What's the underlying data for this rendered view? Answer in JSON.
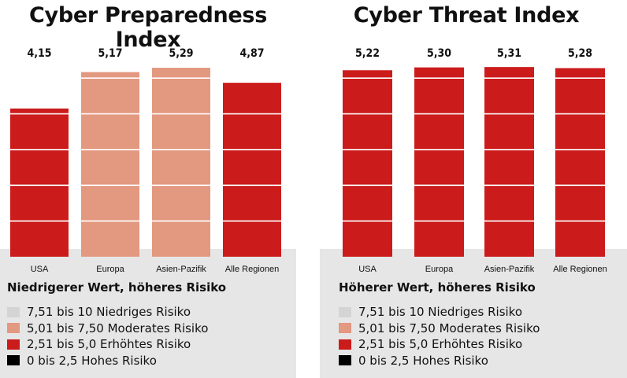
{
  "chart_data": [
    {
      "type": "bar",
      "title": "Cyber Preparedness Index",
      "categories": [
        "USA",
        "Europa",
        "Asien-Pazifik",
        "Alle Regionen"
      ],
      "values": [
        4.15,
        5.17,
        5.29,
        4.87
      ],
      "value_labels": [
        "4,15",
        "5,17",
        "5,29",
        "4,87"
      ],
      "ylim": [
        0,
        5.6
      ],
      "bar_colors": [
        "#cc1b1b",
        "#e39880",
        "#e39880",
        "#cc1b1b"
      ],
      "grid": "white horizontal lines",
      "risk_note": "Niedrigerer Wert, höheres Risiko",
      "legend": [
        {
          "label": "7,51 bis 10 Niedriges Risiko",
          "color": "#d4d4d4"
        },
        {
          "label": "5,01 bis 7,50 Moderates Risiko",
          "color": "#e39880"
        },
        {
          "label": "2,51 bis 5,0 Erhöhtes Risiko",
          "color": "#cc1b1b"
        },
        {
          "label": "0 bis 2,5 Hohes Risiko",
          "color": "#000000"
        }
      ]
    },
    {
      "type": "bar",
      "title": "Cyber Threat Index",
      "categories": [
        "USA",
        "Europa",
        "Asien-Pazifik",
        "Alle Regionen"
      ],
      "values": [
        5.22,
        5.3,
        5.31,
        5.28
      ],
      "value_labels": [
        "5,22",
        "5,30",
        "5,31",
        "5,28"
      ],
      "ylim": [
        0,
        5.6
      ],
      "bar_colors": [
        "#cc1b1b",
        "#cc1b1b",
        "#cc1b1b",
        "#cc1b1b"
      ],
      "grid": "white horizontal lines",
      "risk_note": "Höherer Wert, höheres Risiko",
      "legend": [
        {
          "label": "7,51 bis 10 Niedriges Risiko",
          "color": "#d4d4d4"
        },
        {
          "label": "5,01 bis 7,50 Moderates Risiko",
          "color": "#e39880"
        },
        {
          "label": "2,51 bis 5,0 Erhöhtes Risiko",
          "color": "#cc1b1b"
        },
        {
          "label": "0 bis 2,5 Hohes Risiko",
          "color": "#000000"
        }
      ]
    }
  ]
}
